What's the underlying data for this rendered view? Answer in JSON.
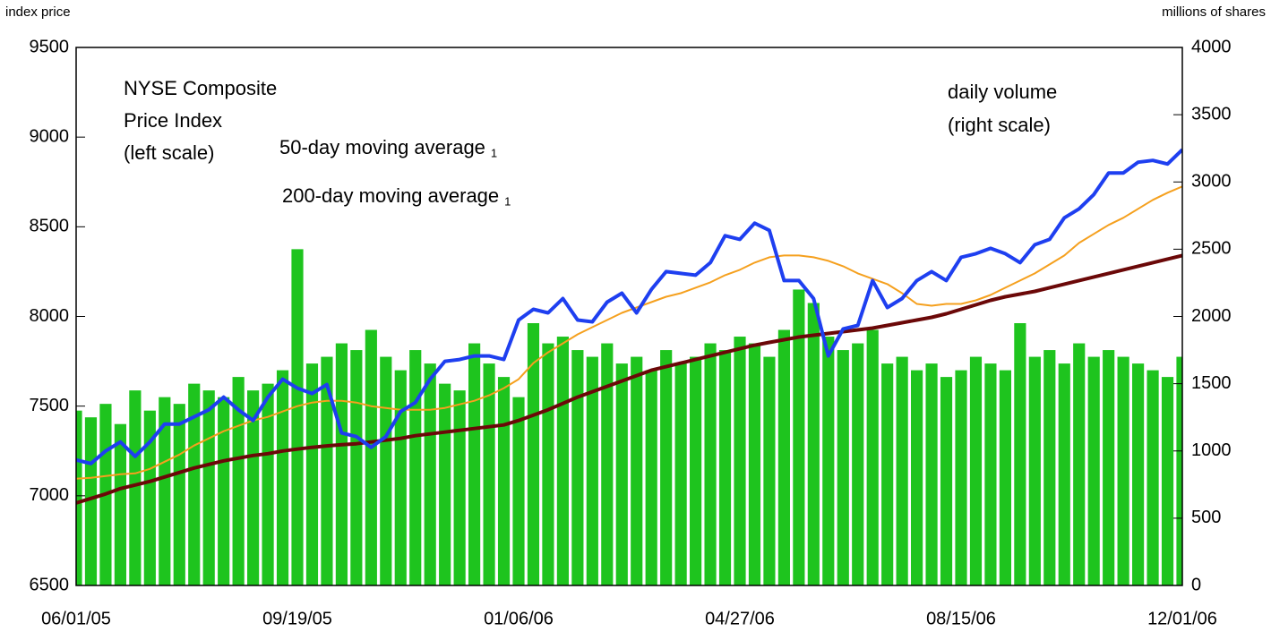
{
  "chart_data": {
    "type": "combo",
    "ylabel": "index price",
    "y2label": "millions of shares",
    "ylim": [
      6500,
      9500
    ],
    "yticks": [
      6500,
      7000,
      7500,
      8000,
      8500,
      9000,
      9500
    ],
    "y2lim": [
      0,
      4000
    ],
    "y2ticks": [
      0,
      500,
      1000,
      1500,
      2000,
      2500,
      3000,
      3500,
      4000
    ],
    "categories": [
      "06/01/05",
      null,
      null,
      null,
      null,
      null,
      null,
      null,
      null,
      null,
      null,
      null,
      null,
      null,
      null,
      "09/19/05",
      null,
      null,
      null,
      null,
      null,
      null,
      null,
      null,
      null,
      null,
      null,
      null,
      null,
      null,
      "01/06/06",
      null,
      null,
      null,
      null,
      null,
      null,
      null,
      null,
      null,
      null,
      null,
      null,
      null,
      null,
      "04/27/06",
      null,
      null,
      null,
      null,
      null,
      null,
      null,
      null,
      null,
      null,
      null,
      null,
      null,
      null,
      "08/15/06",
      null,
      null,
      null,
      null,
      null,
      null,
      null,
      null,
      null,
      null,
      null,
      null,
      null,
      null,
      "12/01/06"
    ],
    "series": [
      {
        "type": "bar",
        "axis": "y2",
        "color": "#1ec41e",
        "label": [
          "daily volume",
          "(right scale)"
        ],
        "values": [
          1300,
          1250,
          1350,
          1200,
          1450,
          1300,
          1400,
          1350,
          1500,
          1450,
          1400,
          1550,
          1450,
          1500,
          1600,
          2500,
          1650,
          1700,
          1800,
          1750,
          1900,
          1700,
          1600,
          1750,
          1650,
          1500,
          1450,
          1800,
          1650,
          1550,
          1400,
          1950,
          1800,
          1850,
          1750,
          1700,
          1800,
          1650,
          1700,
          1600,
          1750,
          1650,
          1700,
          1800,
          1750,
          1850,
          1800,
          1700,
          1900,
          2200,
          2100,
          1850,
          1750,
          1800,
          1900,
          1650,
          1700,
          1600,
          1650,
          1550,
          1600,
          1700,
          1650,
          1600,
          1950,
          1700,
          1750,
          1650,
          1800,
          1700,
          1750,
          1700,
          1650,
          1600,
          1550,
          1700
        ]
      },
      {
        "type": "line",
        "color": "#6b0808",
        "width": 4,
        "label": [
          "200-day moving average"
        ],
        "footnote": "1",
        "values": [
          6960,
          6985,
          7010,
          7040,
          7060,
          7080,
          7105,
          7130,
          7155,
          7175,
          7195,
          7210,
          7225,
          7235,
          7250,
          7260,
          7270,
          7278,
          7285,
          7290,
          7300,
          7310,
          7320,
          7335,
          7345,
          7355,
          7365,
          7375,
          7385,
          7395,
          7420,
          7450,
          7480,
          7515,
          7550,
          7580,
          7610,
          7640,
          7670,
          7700,
          7720,
          7740,
          7760,
          7780,
          7800,
          7820,
          7840,
          7855,
          7870,
          7885,
          7895,
          7905,
          7915,
          7925,
          7935,
          7950,
          7965,
          7980,
          7995,
          8015,
          8040,
          8065,
          8090,
          8110,
          8125,
          8140,
          8160,
          8180,
          8200,
          8220,
          8240,
          8260,
          8280,
          8300,
          8320,
          8340
        ]
      },
      {
        "type": "line",
        "color": "#f5a01e",
        "width": 2,
        "label": [
          "50-day moving average"
        ],
        "footnote": "1",
        "values": [
          7095,
          7100,
          7110,
          7120,
          7125,
          7150,
          7190,
          7230,
          7280,
          7320,
          7360,
          7390,
          7420,
          7440,
          7470,
          7500,
          7520,
          7530,
          7530,
          7520,
          7500,
          7490,
          7480,
          7480,
          7480,
          7490,
          7510,
          7530,
          7560,
          7600,
          7650,
          7740,
          7800,
          7850,
          7900,
          7940,
          7980,
          8020,
          8050,
          8080,
          8110,
          8130,
          8160,
          8190,
          8230,
          8260,
          8300,
          8330,
          8340,
          8340,
          8330,
          8310,
          8280,
          8240,
          8210,
          8180,
          8130,
          8070,
          8060,
          8070,
          8070,
          8090,
          8120,
          8160,
          8200,
          8240,
          8290,
          8340,
          8410,
          8460,
          8510,
          8550,
          8600,
          8650,
          8690,
          8725
        ]
      },
      {
        "type": "line",
        "color": "#1e3ff0",
        "width": 4,
        "label": [
          "NYSE Composite",
          "Price Index",
          "(left scale)"
        ],
        "values": [
          7200,
          7180,
          7250,
          7300,
          7220,
          7300,
          7400,
          7400,
          7440,
          7480,
          7550,
          7480,
          7420,
          7550,
          7650,
          7600,
          7570,
          7620,
          7350,
          7330,
          7270,
          7330,
          7470,
          7520,
          7650,
          7750,
          7760,
          7780,
          7780,
          7760,
          7980,
          8040,
          8020,
          8100,
          7980,
          7970,
          8080,
          8130,
          8020,
          8150,
          8250,
          8240,
          8230,
          8300,
          8450,
          8430,
          8520,
          8480,
          8200,
          8200,
          8100,
          7780,
          7930,
          7950,
          8200,
          8050,
          8100,
          8200,
          8250,
          8200,
          8330,
          8350,
          8380,
          8350,
          8300,
          8400,
          8430,
          8550,
          8600,
          8680,
          8800,
          8800,
          8860,
          8870,
          8850,
          8930
        ]
      }
    ]
  }
}
